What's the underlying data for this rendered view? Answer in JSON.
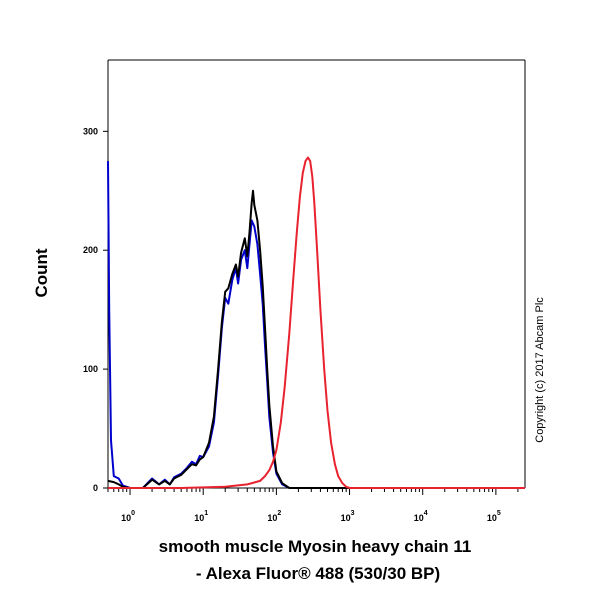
{
  "chart_data": {
    "type": "line",
    "title": "",
    "xlabel_line1": "smooth muscle Myosin heavy chain 11",
    "xlabel_line2": "- Alexa Fluor® 488 (530/30 BP)",
    "ylabel": "Count",
    "x_scale": "log",
    "xlim": [
      0.5,
      250000
    ],
    "ylim": [
      0,
      360
    ],
    "x_ticks": [
      {
        "value": 1,
        "base": "10",
        "exp": "0"
      },
      {
        "value": 10,
        "base": "10",
        "exp": "1"
      },
      {
        "value": 100,
        "base": "10",
        "exp": "2"
      },
      {
        "value": 1000,
        "base": "10",
        "exp": "3"
      },
      {
        "value": 10000,
        "base": "10",
        "exp": "4"
      },
      {
        "value": 100000,
        "base": "10",
        "exp": "5"
      }
    ],
    "y_ticks": [
      0,
      100,
      200,
      300
    ],
    "grid": false,
    "legend": "none",
    "annotation": "Copyright (c) 2017 Abcam Plc",
    "series": [
      {
        "color": "#0000cc",
        "points": [
          [
            0.5,
            275
          ],
          [
            0.52,
            150
          ],
          [
            0.55,
            40
          ],
          [
            0.6,
            10
          ],
          [
            0.7,
            8
          ],
          [
            0.8,
            2
          ],
          [
            1.0,
            0
          ],
          [
            1.5,
            0
          ],
          [
            2.0,
            8
          ],
          [
            2.5,
            3
          ],
          [
            3.0,
            7
          ],
          [
            3.5,
            3
          ],
          [
            4.0,
            9
          ],
          [
            5.0,
            12
          ],
          [
            6.0,
            17
          ],
          [
            7.0,
            22
          ],
          [
            8.0,
            20
          ],
          [
            9.0,
            27
          ],
          [
            10.0,
            26
          ],
          [
            12.0,
            35
          ],
          [
            14.0,
            55
          ],
          [
            16.0,
            95
          ],
          [
            18.0,
            135
          ],
          [
            20.0,
            160
          ],
          [
            22.0,
            155
          ],
          [
            25.0,
            175
          ],
          [
            28.0,
            185
          ],
          [
            30.0,
            172
          ],
          [
            33.0,
            192
          ],
          [
            37.0,
            200
          ],
          [
            40.0,
            185
          ],
          [
            43.0,
            205
          ],
          [
            46.0,
            225
          ],
          [
            50.0,
            220
          ],
          [
            55.0,
            205
          ],
          [
            60.0,
            180
          ],
          [
            65.0,
            155
          ],
          [
            70.0,
            120
          ],
          [
            75.0,
            90
          ],
          [
            80.0,
            60
          ],
          [
            90.0,
            30
          ],
          [
            100.0,
            12
          ],
          [
            120.0,
            3
          ],
          [
            150.0,
            0
          ],
          [
            250000,
            0
          ]
        ]
      },
      {
        "color": "#000000",
        "points": [
          [
            0.5,
            6
          ],
          [
            0.6,
            5
          ],
          [
            0.7,
            3
          ],
          [
            0.8,
            1
          ],
          [
            1.0,
            0
          ],
          [
            1.5,
            0
          ],
          [
            2.0,
            7
          ],
          [
            2.5,
            3
          ],
          [
            3.0,
            6
          ],
          [
            3.5,
            3
          ],
          [
            4.0,
            8
          ],
          [
            5.0,
            11
          ],
          [
            6.0,
            16
          ],
          [
            7.0,
            20
          ],
          [
            8.0,
            19
          ],
          [
            9.0,
            24
          ],
          [
            10.0,
            26
          ],
          [
            12.0,
            38
          ],
          [
            14.0,
            60
          ],
          [
            16.0,
            100
          ],
          [
            18.0,
            140
          ],
          [
            20.0,
            165
          ],
          [
            22.0,
            168
          ],
          [
            25.0,
            180
          ],
          [
            28.0,
            188
          ],
          [
            30.0,
            178
          ],
          [
            33.0,
            198
          ],
          [
            37.0,
            210
          ],
          [
            40.0,
            195
          ],
          [
            43.0,
            215
          ],
          [
            46.0,
            240
          ],
          [
            48.0,
            250
          ],
          [
            50.0,
            238
          ],
          [
            55.0,
            225
          ],
          [
            60.0,
            200
          ],
          [
            65.0,
            170
          ],
          [
            70.0,
            135
          ],
          [
            75.0,
            100
          ],
          [
            80.0,
            70
          ],
          [
            90.0,
            35
          ],
          [
            100.0,
            14
          ],
          [
            120.0,
            4
          ],
          [
            150.0,
            0
          ],
          [
            250000,
            0
          ]
        ]
      },
      {
        "color": "#e8222e",
        "points": [
          [
            0.5,
            0
          ],
          [
            5,
            0
          ],
          [
            20,
            1
          ],
          [
            40,
            3
          ],
          [
            60,
            6
          ],
          [
            70,
            10
          ],
          [
            80,
            15
          ],
          [
            90,
            22
          ],
          [
            100,
            32
          ],
          [
            115,
            55
          ],
          [
            130,
            85
          ],
          [
            150,
            130
          ],
          [
            170,
            175
          ],
          [
            190,
            215
          ],
          [
            210,
            245
          ],
          [
            230,
            265
          ],
          [
            250,
            275
          ],
          [
            270,
            278
          ],
          [
            290,
            275
          ],
          [
            310,
            262
          ],
          [
            330,
            240
          ],
          [
            360,
            200
          ],
          [
            400,
            150
          ],
          [
            450,
            100
          ],
          [
            500,
            65
          ],
          [
            560,
            38
          ],
          [
            630,
            20
          ],
          [
            700,
            10
          ],
          [
            800,
            4
          ],
          [
            900,
            1
          ],
          [
            1000,
            0
          ],
          [
            250000,
            0
          ]
        ]
      }
    ]
  }
}
